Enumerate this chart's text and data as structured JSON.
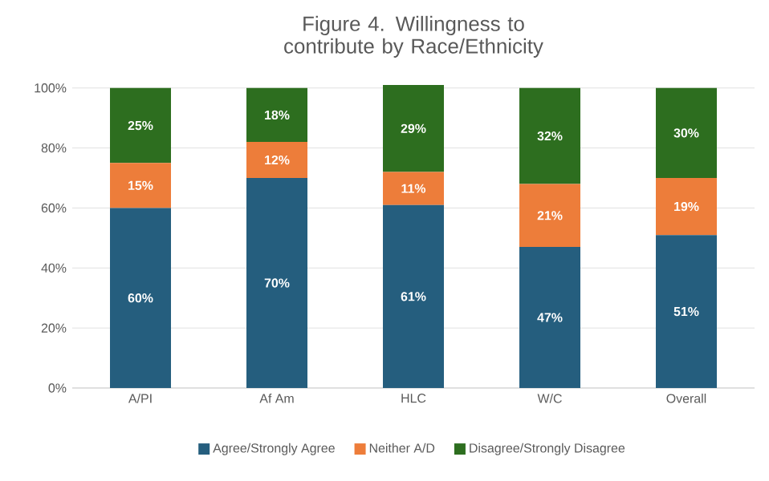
{
  "chart_data": {
    "type": "bar",
    "title": "Figure 4. Willingness to contribute by Race/Ethnicity",
    "categories": [
      "A/PI",
      "Af Am",
      "HLC",
      "W/C",
      "Overall"
    ],
    "stacked": true,
    "series": [
      {
        "name": "Agree/Strongly Agree",
        "color": "#255e7e",
        "values": [
          60,
          70,
          61,
          47,
          51
        ],
        "value_labels": [
          "60%",
          "70%",
          "61%",
          "47%",
          "51%"
        ]
      },
      {
        "name": "Neither A/D",
        "color": "#ed7d3a",
        "values": [
          15,
          12,
          11,
          21,
          19
        ],
        "value_labels": [
          "15%",
          "12%",
          "11%",
          "21%",
          "19%"
        ]
      },
      {
        "name": "Disagree/Strongly Disagree",
        "color": "#2d6e1f",
        "values": [
          25,
          18,
          29,
          32,
          30
        ],
        "value_labels": [
          "25%",
          "18%",
          "29%",
          "32%",
          "30%"
        ]
      }
    ],
    "ylim": [
      0,
      101
    ],
    "yticks": [
      {
        "value": 0,
        "label": "0%"
      },
      {
        "value": 20,
        "label": "20%"
      },
      {
        "value": 40,
        "label": "40%"
      },
      {
        "value": 60,
        "label": "60%"
      },
      {
        "value": 80,
        "label": "80%"
      },
      {
        "value": 100,
        "label": "100%"
      }
    ],
    "grid": "y",
    "legend": "bottom"
  }
}
